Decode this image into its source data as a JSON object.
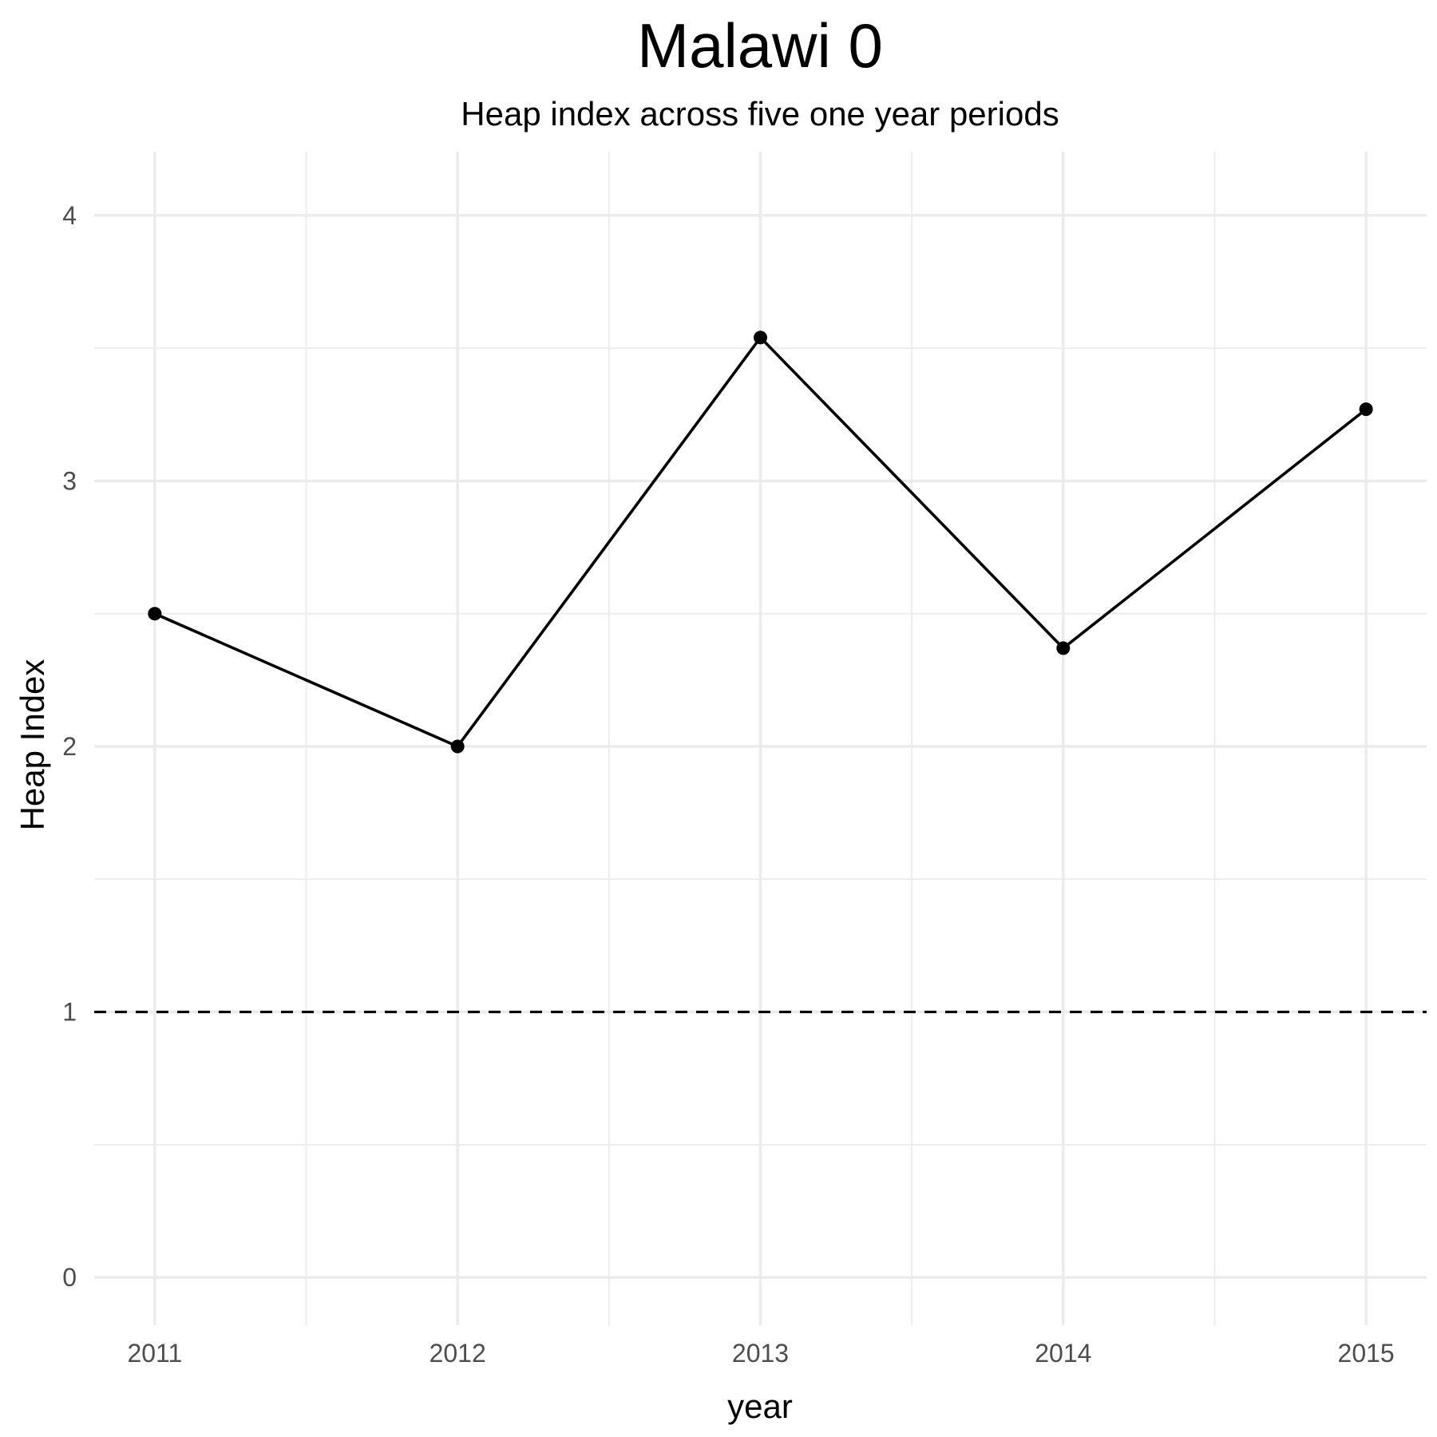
{
  "chart_data": {
    "type": "line",
    "title": "Malawi 0",
    "subtitle": "Heap index across five one year periods",
    "xlabel": "year",
    "ylabel": "Heap Index",
    "x": [
      2011,
      2012,
      2013,
      2014,
      2015
    ],
    "series": [
      {
        "values": [
          2.5,
          2.0,
          3.54,
          2.37,
          3.27
        ]
      }
    ],
    "x_ticks": [
      "2011",
      "2012",
      "2013",
      "2014",
      "2015"
    ],
    "y_ticks": [
      "0",
      "1",
      "2",
      "3",
      "4"
    ],
    "xlim": [
      2010.8,
      2015.2
    ],
    "ylim": [
      -0.18,
      4.24
    ],
    "reference_line": {
      "y": 1,
      "style": "dashed"
    },
    "grid": true,
    "legend": "none",
    "colors": {
      "line": "#000000",
      "grid": "#ebebeb",
      "tick_text": "#4d4d4d"
    }
  }
}
